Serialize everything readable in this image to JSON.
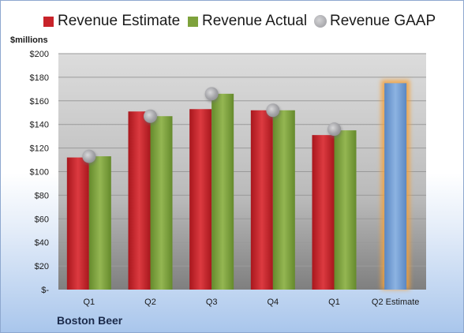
{
  "chart_data": {
    "type": "bar",
    "ylabel": "$millions",
    "ylim": [
      0,
      200
    ],
    "y_ticks": [
      0,
      20,
      40,
      60,
      80,
      100,
      120,
      140,
      160,
      180,
      200
    ],
    "y_tick_labels": [
      "$-",
      "$20",
      "$40",
      "$60",
      "$80",
      "$100",
      "$120",
      "$140",
      "$160",
      "$180",
      "$200"
    ],
    "categories": [
      "Q1",
      "Q2",
      "Q3",
      "Q4",
      "Q1",
      "Q2 Estimate"
    ],
    "series": [
      {
        "name": "Revenue Estimate",
        "kind": "bar",
        "color": "#c8232a",
        "values": [
          112,
          151,
          153,
          152,
          131,
          null
        ]
      },
      {
        "name": "Revenue Actual",
        "kind": "bar",
        "color": "#7ea23c",
        "values": [
          113,
          147,
          166,
          152,
          135,
          175
        ]
      },
      {
        "name": "Revenue GAAP",
        "kind": "marker",
        "color": "#a9a9ad",
        "values": [
          113,
          147,
          166,
          152,
          136,
          null
        ]
      }
    ],
    "highlight": {
      "category_index": 5,
      "bar_color": "#6e9bd3",
      "glow_color": "#f4a13a"
    },
    "grid": true,
    "legend_position": "top",
    "company": "Boston Beer"
  }
}
